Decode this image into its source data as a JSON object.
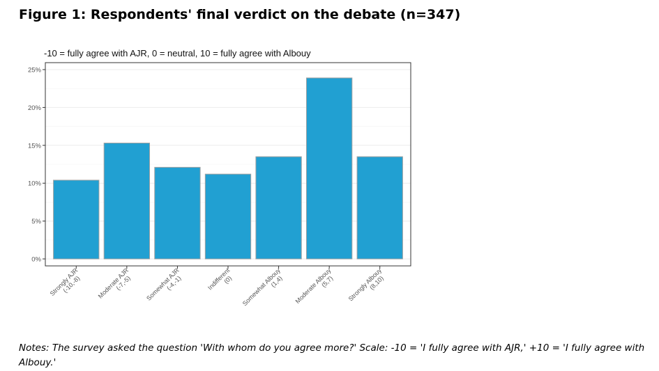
{
  "figure": {
    "title": "Figure 1: Respondents' final verdict on the debate (n=347)",
    "notes": "Notes: The survey asked the question  'With whom do you agree more?' Scale: -10 = 'I fully agree with AJR,' +10 = 'I fully agree with Albouy.'"
  },
  "chart_data": {
    "type": "bar",
    "title": "",
    "subtitle": "-10 = fully agree with AJR, 0 = neutral, 10 = fully agree with Albouy",
    "xlabel": "",
    "ylabel": "",
    "categories": [
      {
        "line1": "Strongly AJR",
        "line2": "(-10,-8)"
      },
      {
        "line1": "Moderate AJR",
        "line2": "(-7,-5)"
      },
      {
        "line1": "Somewhat AJR",
        "line2": "(-4,-1)"
      },
      {
        "line1": "Indifferent",
        "line2": "(0)"
      },
      {
        "line1": "Somewhat Albouy",
        "line2": "(1,4)"
      },
      {
        "line1": "Moderate Albouy",
        "line2": "(5,7)"
      },
      {
        "line1": "Strongly Albouy",
        "line2": "(8,10)"
      }
    ],
    "values": [
      10.4,
      15.3,
      12.1,
      11.2,
      13.5,
      23.9,
      13.5
    ],
    "unit": "%",
    "ylim": [
      0,
      25
    ],
    "yticks": [
      0,
      5,
      10,
      15,
      20,
      25
    ],
    "ytick_labels": [
      "0%",
      "5%",
      "10%",
      "15%",
      "20%",
      "25%"
    ],
    "grid": true,
    "legend": "none",
    "colors": {
      "bar_fill": "#21a0d2",
      "bar_stroke": "#a0a0a0",
      "grid": "#ebebeb",
      "panel_border": "#333333"
    }
  }
}
